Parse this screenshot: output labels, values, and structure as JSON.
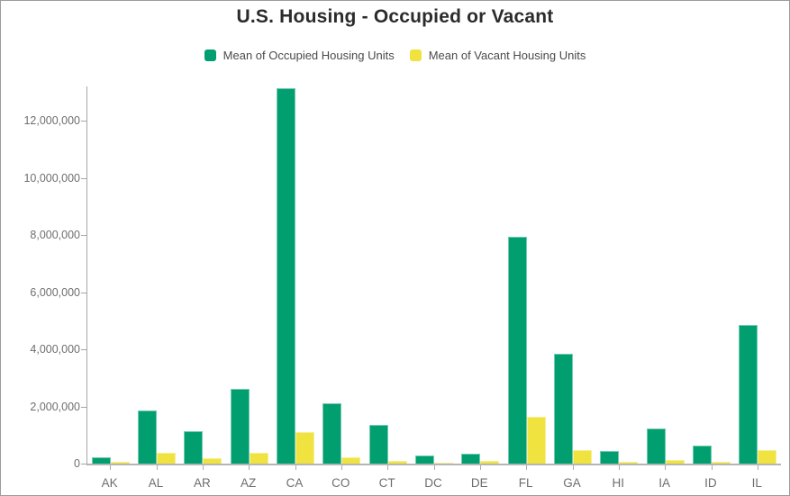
{
  "chart_data": {
    "type": "bar",
    "title": "U.S. Housing - Occupied or Vacant",
    "categories": [
      "AK",
      "AL",
      "AR",
      "AZ",
      "CA",
      "CO",
      "CT",
      "DC",
      "DE",
      "FL",
      "GA",
      "HI",
      "IA",
      "ID",
      "IL"
    ],
    "series": [
      {
        "name": "Mean of Occupied Housing Units",
        "color": "#019E70",
        "values": [
          230000,
          1860000,
          1150000,
          2620000,
          13130000,
          2110000,
          1360000,
          270000,
          350000,
          7930000,
          3840000,
          440000,
          1240000,
          620000,
          4860000
        ]
      },
      {
        "name": "Mean of Vacant Housing Units",
        "color": "#F0E23F",
        "values": [
          60000,
          370000,
          200000,
          390000,
          1100000,
          220000,
          100000,
          30000,
          90000,
          1630000,
          470000,
          55000,
          115000,
          65000,
          460000
        ]
      }
    ],
    "xlabel": "",
    "ylabel": "",
    "ylim": [
      0,
      13200000
    ],
    "yticks": [
      0,
      2000000,
      4000000,
      6000000,
      8000000,
      10000000,
      12000000
    ],
    "grid": false,
    "legend_position": "top"
  },
  "colors": {
    "background": "#FFFFFF",
    "frame_border": "#9B9B9B",
    "title_text": "#2B2B2B",
    "legend_text": "#4A4A4A",
    "axis_text": "#6E6E6E",
    "axis_line": "#A6A6A6",
    "baseline": "#B5B5B5",
    "tick": "#ADADAD"
  }
}
